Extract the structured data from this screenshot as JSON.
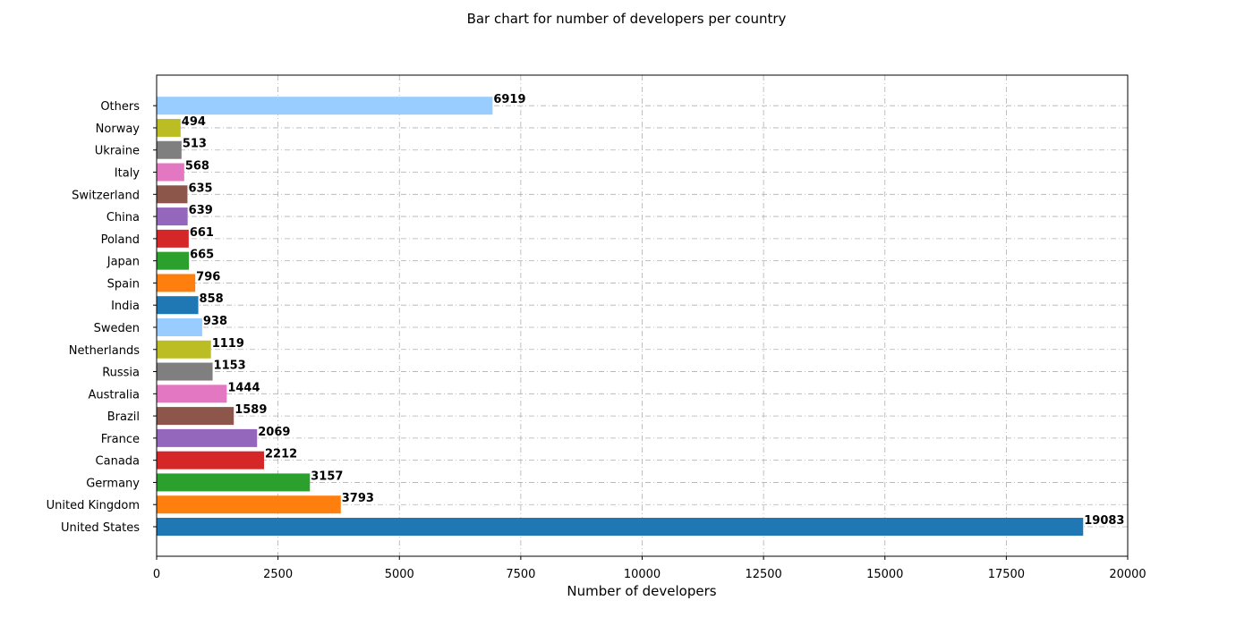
{
  "chart_data": {
    "type": "bar",
    "orientation": "horizontal",
    "title": "Bar chart for number of developers per country",
    "xlabel": "Number of developers",
    "ylabel": "",
    "xlim": [
      0,
      20000
    ],
    "xticks": [
      "0",
      "2500",
      "5000",
      "7500",
      "10000",
      "12500",
      "15000",
      "17500",
      "20000"
    ],
    "grid": true,
    "categories": [
      "United States",
      "United Kingdom",
      "Germany",
      "Canada",
      "France",
      "Brazil",
      "Australia",
      "Russia",
      "Netherlands",
      "Sweden",
      "India",
      "Spain",
      "Japan",
      "Poland",
      "China",
      "Switzerland",
      "Italy",
      "Ukraine",
      "Norway",
      "Others"
    ],
    "values": [
      19083,
      3793,
      3157,
      2212,
      2069,
      1589,
      1444,
      1153,
      1119,
      938,
      858,
      796,
      665,
      661,
      639,
      635,
      568,
      513,
      494,
      6919
    ],
    "colors": [
      "#1f77b4",
      "#ff7f0e",
      "#2ca02c",
      "#d62728",
      "#9467bd",
      "#8c564b",
      "#e377c2",
      "#7f7f7f",
      "#bcbd22",
      "#99ccff",
      "#1f77b4",
      "#ff7f0e",
      "#2ca02c",
      "#d62728",
      "#9467bd",
      "#8c564b",
      "#e377c2",
      "#7f7f7f",
      "#bcbd22",
      "#99ccff"
    ]
  }
}
